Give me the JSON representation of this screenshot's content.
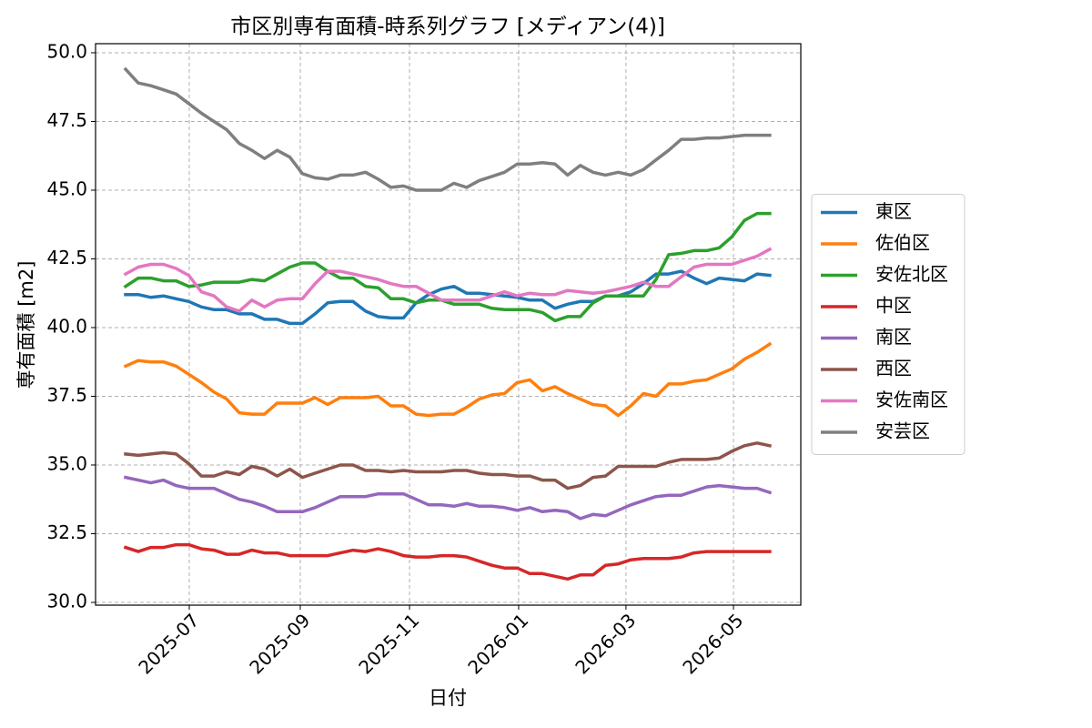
{
  "chart_data": {
    "type": "line",
    "title": "市区別専有面積-時系列グラフ [メディアン(4)]",
    "x_label": "日付",
    "y_label": "専有面積 [m2]",
    "categories": [
      null,
      null,
      null,
      null,
      null,
      null,
      null,
      null,
      null,
      null,
      null,
      null,
      null,
      null,
      null,
      null,
      null,
      null,
      null,
      null,
      null,
      null,
      null,
      null,
      null,
      null,
      null,
      null,
      null,
      null,
      null,
      null,
      null,
      null,
      null,
      null,
      null,
      null,
      null,
      null,
      null,
      null,
      null,
      null,
      null,
      null,
      null,
      null,
      null,
      null,
      null,
      null
    ],
    "xlim": [
      -2.38,
      53.46
    ],
    "xticks": [
      {
        "value": 5.04,
        "label": "2025-07"
      },
      {
        "value": 13.83,
        "label": "2025-09"
      },
      {
        "value": 22.48,
        "label": "2025-11"
      },
      {
        "value": 31.12,
        "label": "2026-01"
      },
      {
        "value": 39.62,
        "label": "2026-03"
      },
      {
        "value": 48.13,
        "label": "2026-05"
      }
    ],
    "ylim": [
      29.9,
      50.33
    ],
    "yticks": [
      {
        "value": 30,
        "label": "30.0"
      },
      32.5,
      {
        "value": 35,
        "label": "35.0"
      },
      37.5,
      {
        "value": 40,
        "label": "40.0"
      },
      42.5,
      {
        "value": 45,
        "label": "45.0"
      },
      47.5,
      {
        "value": 50,
        "label": "50.0"
      }
    ],
    "grid": true,
    "legend": "outside right",
    "series": [
      {
        "name": "東区",
        "color": "#1f77b4",
        "values": [
          41.2,
          41.2,
          41.1,
          41.15,
          41.05,
          40.95,
          40.75,
          40.65,
          40.65,
          40.5,
          40.5,
          40.3,
          40.3,
          40.15,
          40.15,
          40.5,
          40.9,
          40.95,
          40.95,
          40.6,
          40.4,
          40.35,
          40.35,
          40.9,
          41.2,
          41.4,
          41.5,
          41.25,
          41.25,
          41.2,
          41.15,
          41.1,
          41.0,
          41.0,
          40.7,
          40.85,
          40.95,
          40.95,
          41.15,
          41.15,
          41.3,
          41.6,
          41.95,
          41.95,
          42.05,
          41.8,
          41.6,
          41.8,
          41.75,
          41.7,
          41.95,
          41.9
        ]
      },
      {
        "name": "佐伯区",
        "color": "#ff7f0e",
        "values": [
          38.6,
          38.8,
          38.75,
          38.75,
          38.6,
          38.3,
          38.0,
          37.65,
          37.4,
          36.9,
          36.85,
          36.85,
          37.25,
          37.25,
          37.25,
          37.45,
          37.2,
          37.45,
          37.45,
          37.45,
          37.5,
          37.15,
          37.15,
          36.85,
          36.8,
          36.85,
          36.85,
          37.1,
          37.4,
          37.55,
          37.6,
          38.0,
          38.1,
          37.7,
          37.85,
          37.6,
          37.4,
          37.2,
          37.15,
          36.8,
          37.15,
          37.6,
          37.5,
          37.95,
          37.95,
          38.05,
          38.1,
          38.3,
          38.5,
          38.85,
          39.1,
          39.4
        ]
      },
      {
        "name": "安佐北区",
        "color": "#2ca02c",
        "values": [
          41.5,
          41.8,
          41.8,
          41.7,
          41.7,
          41.5,
          41.55,
          41.65,
          41.65,
          41.65,
          41.75,
          41.7,
          41.95,
          42.2,
          42.35,
          42.35,
          42.05,
          41.8,
          41.8,
          41.5,
          41.45,
          41.05,
          41.05,
          40.9,
          41.0,
          41.0,
          40.85,
          40.85,
          40.85,
          40.7,
          40.65,
          40.65,
          40.65,
          40.55,
          40.25,
          40.4,
          40.4,
          40.9,
          41.15,
          41.15,
          41.15,
          41.15,
          41.75,
          42.65,
          42.7,
          42.8,
          42.8,
          42.9,
          43.3,
          43.9,
          44.15,
          44.15
        ]
      },
      {
        "name": "中区",
        "color": "#d62728",
        "values": [
          32.0,
          31.85,
          32.0,
          32.0,
          32.1,
          32.1,
          31.95,
          31.9,
          31.75,
          31.75,
          31.9,
          31.8,
          31.8,
          31.7,
          31.7,
          31.7,
          31.7,
          31.8,
          31.9,
          31.85,
          31.95,
          31.85,
          31.7,
          31.65,
          31.65,
          31.7,
          31.7,
          31.65,
          31.5,
          31.35,
          31.25,
          31.25,
          31.05,
          31.05,
          30.95,
          30.85,
          31.0,
          31.0,
          31.35,
          31.4,
          31.55,
          31.6,
          31.6,
          31.6,
          31.65,
          31.8,
          31.85,
          31.85,
          31.85,
          31.85,
          31.85,
          31.85
        ]
      },
      {
        "name": "南区",
        "color": "#9467bd",
        "values": [
          34.55,
          34.45,
          34.35,
          34.45,
          34.25,
          34.15,
          34.15,
          34.15,
          33.95,
          33.75,
          33.65,
          33.5,
          33.3,
          33.3,
          33.3,
          33.45,
          33.65,
          33.85,
          33.85,
          33.85,
          33.95,
          33.95,
          33.95,
          33.75,
          33.55,
          33.55,
          33.5,
          33.6,
          33.5,
          33.5,
          33.45,
          33.35,
          33.45,
          33.3,
          33.35,
          33.3,
          33.05,
          33.2,
          33.15,
          33.35,
          33.55,
          33.7,
          33.85,
          33.9,
          33.9,
          34.05,
          34.2,
          34.25,
          34.2,
          34.15,
          34.15,
          34.0
        ]
      },
      {
        "name": "西区",
        "color": "#8c564b",
        "values": [
          35.4,
          35.35,
          35.4,
          35.45,
          35.4,
          35.05,
          34.6,
          34.6,
          34.75,
          34.65,
          34.95,
          34.85,
          34.6,
          34.85,
          34.55,
          34.7,
          34.85,
          35.0,
          35.0,
          34.8,
          34.8,
          34.75,
          34.8,
          34.75,
          34.75,
          34.75,
          34.8,
          34.8,
          34.7,
          34.65,
          34.65,
          34.6,
          34.6,
          34.45,
          34.45,
          34.15,
          34.25,
          34.55,
          34.6,
          34.95,
          34.95,
          34.95,
          34.95,
          35.1,
          35.2,
          35.2,
          35.2,
          35.25,
          35.5,
          35.7,
          35.8,
          35.7
        ]
      },
      {
        "name": "安佐南区",
        "color": "#e377c2",
        "values": [
          41.95,
          42.2,
          42.3,
          42.3,
          42.15,
          41.9,
          41.3,
          41.15,
          40.75,
          40.6,
          41.0,
          40.75,
          41.0,
          41.05,
          41.05,
          41.6,
          42.05,
          42.05,
          41.95,
          41.85,
          41.75,
          41.6,
          41.5,
          41.5,
          41.25,
          41.0,
          41.0,
          41.0,
          41.0,
          41.15,
          41.3,
          41.15,
          41.25,
          41.2,
          41.2,
          41.35,
          41.3,
          41.25,
          41.3,
          41.4,
          41.5,
          41.65,
          41.5,
          41.5,
          41.85,
          42.2,
          42.3,
          42.3,
          42.3,
          42.45,
          42.6,
          42.85
        ]
      },
      {
        "name": "安芸区",
        "color": "#7f7f7f",
        "values": [
          49.4,
          48.9,
          48.8,
          48.65,
          48.5,
          48.15,
          47.8,
          47.5,
          47.2,
          46.7,
          46.45,
          46.15,
          46.45,
          46.2,
          45.6,
          45.45,
          45.4,
          45.55,
          45.55,
          45.65,
          45.4,
          45.1,
          45.15,
          45.0,
          45.0,
          45.0,
          45.25,
          45.1,
          45.35,
          45.5,
          45.65,
          45.95,
          45.95,
          46.0,
          45.95,
          45.55,
          45.9,
          45.65,
          45.55,
          45.65,
          45.55,
          45.75,
          46.1,
          46.45,
          46.85,
          46.85,
          46.9,
          46.9,
          46.95,
          47.0,
          47.0,
          47.0
        ]
      }
    ]
  }
}
